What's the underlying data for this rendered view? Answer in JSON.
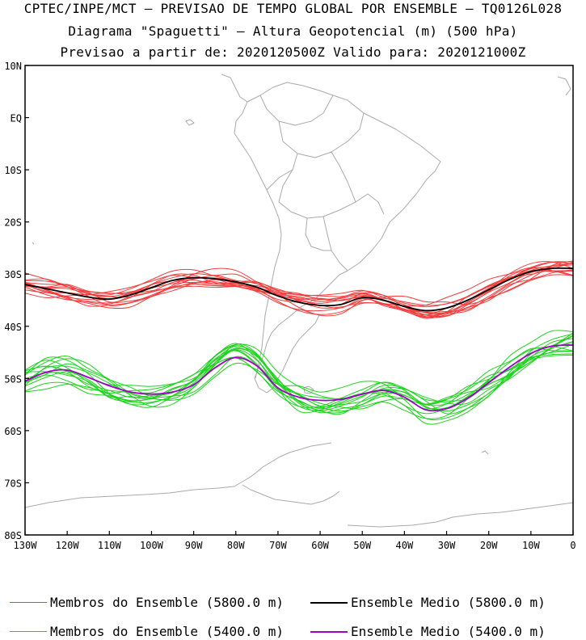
{
  "header": {
    "line1": "CPTEC/INPE/MCT – PREVISAO DE TEMPO GLOBAL POR ENSEMBLE – TQ0126L028",
    "line2": "Diagrama \"Spaguetti\" – Altura Geopotencial (m) (500 hPa)",
    "line3": "Previsao a partir de: 2020120500Z   Valido para: 2020121000Z"
  },
  "legend": [
    {
      "label": "Membros do Ensemble (5800.0 m)",
      "color": "#f03c3c",
      "style": "thin"
    },
    {
      "label": "Ensemble Medio (5800.0 m)",
      "color": "#000000",
      "style": "thick"
    },
    {
      "label": "Membros do Ensemble (5400.0 m)",
      "color": "#1ed21e",
      "style": "thin"
    },
    {
      "label": "Ensemble Medio (5400.0 m)",
      "color": "#a000c8",
      "style": "thick"
    }
  ],
  "chart_data": {
    "type": "line",
    "projection": "lat-lon map",
    "xlim": [
      -130,
      0
    ],
    "ylim": [
      -80,
      10
    ],
    "x_ticks": [
      -130,
      -120,
      -110,
      -100,
      -90,
      -80,
      -70,
      -60,
      -50,
      -40,
      -30,
      -20,
      -10,
      0
    ],
    "x_tick_labels": [
      "130W",
      "120W",
      "110W",
      "100W",
      "90W",
      "80W",
      "70W",
      "60W",
      "50W",
      "40W",
      "30W",
      "20W",
      "10W",
      "0"
    ],
    "y_ticks": [
      10,
      0,
      -10,
      -20,
      -30,
      -40,
      -50,
      -60,
      -70,
      -80
    ],
    "y_tick_labels": [
      "10N",
      "EQ",
      "10S",
      "20S",
      "30S",
      "40S",
      "50S",
      "60S",
      "70S",
      "80S"
    ],
    "colors": {
      "members_5800": "#f03c3c",
      "mean_5800": "#000000",
      "members_5400": "#1ed21e",
      "mean_5400": "#a000c8",
      "coast": "#aaaaaa"
    },
    "x": [
      -130,
      -125,
      -120,
      -115,
      -110,
      -105,
      -100,
      -95,
      -90,
      -85,
      -80,
      -75,
      -70,
      -65,
      -60,
      -55,
      -50,
      -45,
      -40,
      -35,
      -30,
      -25,
      -20,
      -15,
      -10,
      -5,
      0
    ],
    "series": [
      {
        "name": "Ensemble Medio (5800.0 m)",
        "values": [
          -32.0,
          -32.8,
          -33.6,
          -34.4,
          -34.8,
          -34.0,
          -32.6,
          -31.2,
          -30.7,
          -30.9,
          -31.5,
          -32.5,
          -34.2,
          -35.4,
          -36.0,
          -35.8,
          -34.5,
          -35.0,
          -36.2,
          -37.0,
          -36.5,
          -35.0,
          -33.0,
          -31.0,
          -29.5,
          -28.9,
          -28.9
        ]
      },
      {
        "name": "Ensemble Medio (5400.0 m)",
        "values": [
          -50.5,
          -48.8,
          -48.4,
          -49.8,
          -51.4,
          -52.6,
          -53.0,
          -52.6,
          -51.2,
          -48.0,
          -46.0,
          -47.6,
          -51.8,
          -53.6,
          -54.2,
          -54.0,
          -53.0,
          -52.3,
          -53.6,
          -56.0,
          -55.8,
          -53.8,
          -50.8,
          -47.8,
          -45.2,
          -43.8,
          -43.6
        ]
      }
    ]
  }
}
